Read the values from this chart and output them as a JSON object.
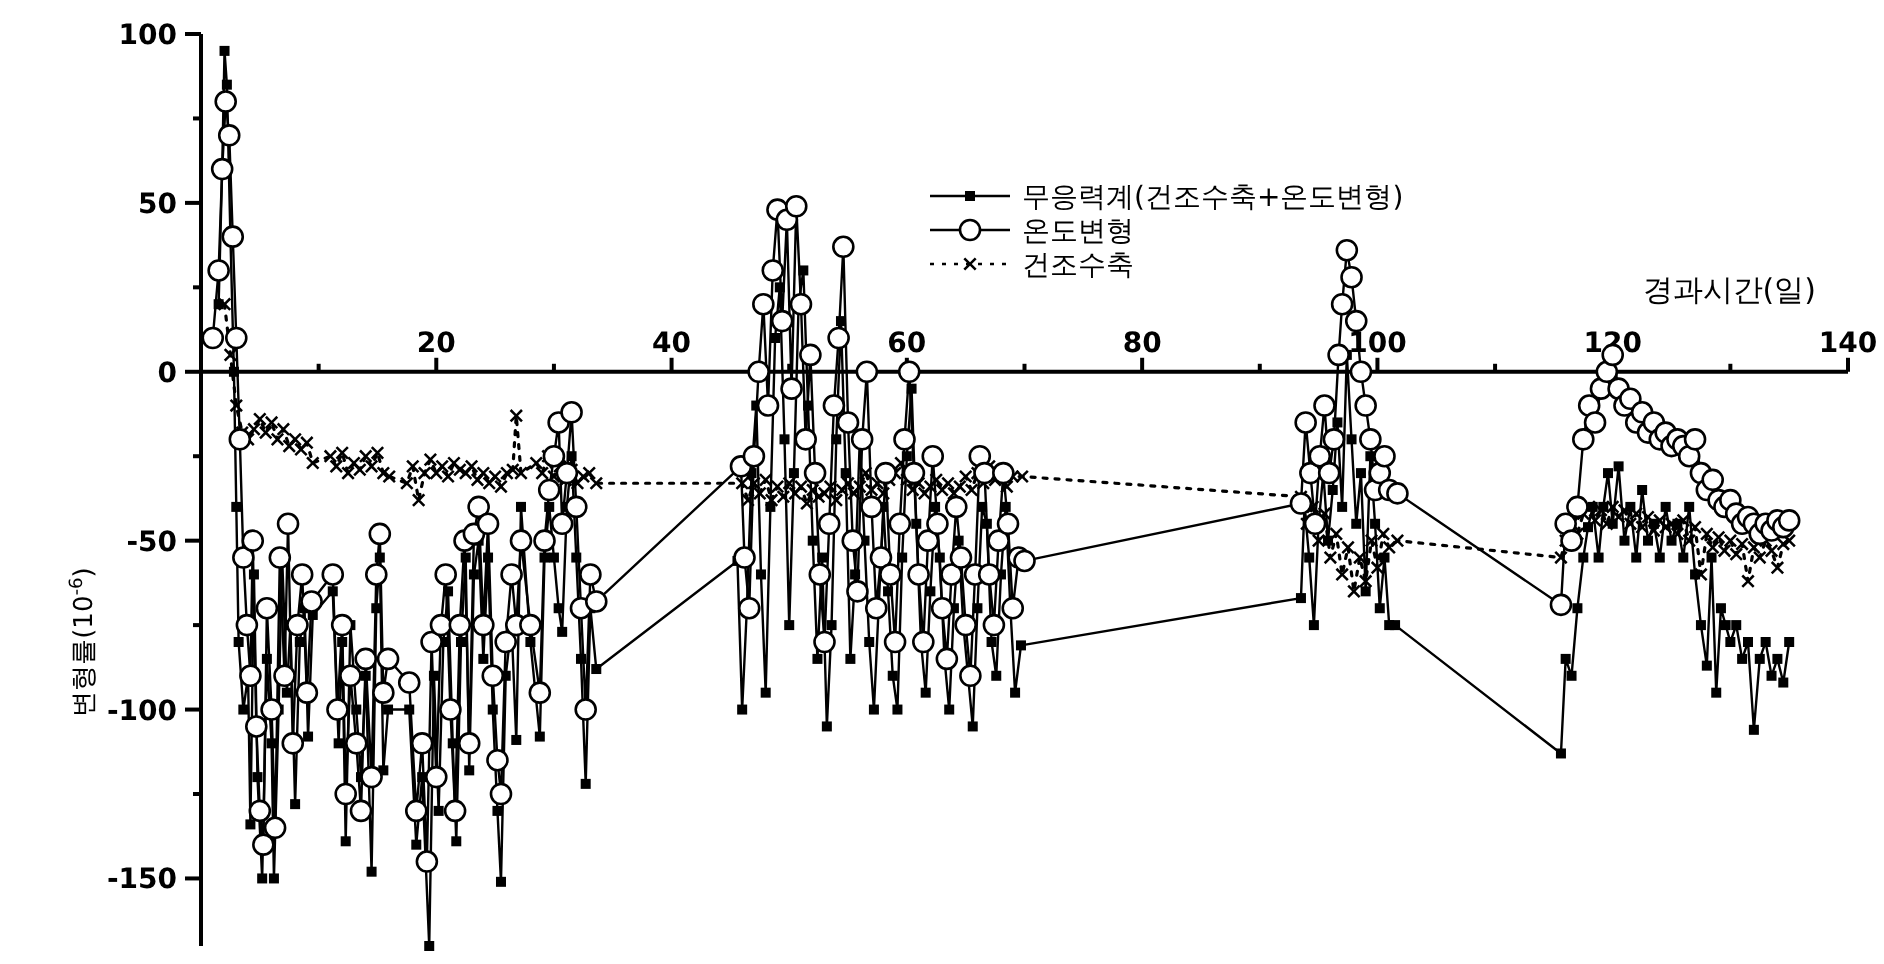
{
  "chart_data": {
    "type": "line",
    "xlabel": "경과시간(일)",
    "ylabel": "변형률(10$^{-6}$)",
    "xlim": [
      0,
      140
    ],
    "ylim": [
      -170,
      100
    ],
    "xticks": [
      {
        "value": 10,
        "label": null
      },
      20,
      {
        "value": 30,
        "label": null
      },
      40,
      {
        "value": 50,
        "label": null
      },
      60,
      {
        "value": 70,
        "label": null
      },
      80,
      {
        "value": 90,
        "label": null
      },
      100,
      {
        "value": 110,
        "label": null
      },
      120,
      {
        "value": 130,
        "label": null
      },
      140
    ],
    "yticks": [
      -150,
      {
        "value": -125,
        "label": null
      },
      -100,
      {
        "value": -75,
        "label": null
      },
      -50,
      {
        "value": -25,
        "label": null
      },
      0,
      {
        "value": 25,
        "label": null
      },
      50,
      {
        "value": 75,
        "label": null
      },
      100
    ],
    "legend": "top",
    "series": [
      {
        "name": "무응력계(건조수축+온도변형)",
        "color": "#000000",
        "marker": "square",
        "line_style": "solid",
        "x": [
          1.5,
          1.8,
          2.0,
          2.2,
          2.5,
          2.8,
          3.0,
          3.2,
          3.6,
          4.0,
          4.2,
          4.5,
          4.8,
          5.2,
          5.6,
          6.0,
          6.2,
          6.6,
          6.9,
          7.3,
          7.6,
          8.0,
          8.4,
          8.8,
          9.1,
          9.5,
          11.2,
          11.7,
          12.0,
          12.3,
          12.7,
          13.2,
          13.6,
          14.0,
          14.5,
          14.9,
          15.2,
          15.5,
          15.9,
          17.7,
          18.3,
          18.8,
          19.4,
          19.8,
          20.2,
          20.6,
          21.0,
          21.4,
          21.7,
          22.1,
          22.5,
          22.8,
          23.2,
          23.6,
          24.0,
          24.4,
          24.8,
          25.2,
          25.5,
          25.9,
          26.4,
          26.8,
          27.2,
          28.0,
          28.8,
          29.2,
          29.6,
          30.0,
          30.4,
          30.7,
          31.1,
          31.5,
          31.9,
          32.3,
          32.7,
          33.1,
          33.6,
          45.6,
          46.0,
          46.4,
          46.8,
          47.2,
          47.6,
          48.0,
          48.4,
          48.8,
          49.2,
          49.6,
          50.0,
          50.4,
          50.8,
          51.2,
          51.6,
          52.0,
          52.4,
          52.8,
          53.2,
          53.6,
          54.0,
          54.4,
          54.8,
          55.2,
          55.6,
          56.0,
          56.4,
          56.8,
          57.2,
          57.6,
          58.0,
          58.4,
          58.8,
          59.2,
          59.6,
          60.0,
          60.4,
          60.8,
          61.2,
          61.6,
          62.0,
          62.4,
          62.8,
          63.2,
          63.6,
          64.0,
          64.4,
          64.8,
          65.2,
          65.6,
          66.0,
          66.4,
          66.8,
          67.2,
          67.6,
          68.0,
          68.4,
          68.8,
          69.2,
          69.7,
          93.5,
          93.8,
          94.2,
          94.6,
          95.0,
          95.4,
          95.8,
          96.2,
          96.6,
          97.0,
          97.4,
          97.8,
          98.2,
          98.6,
          99.0,
          99.4,
          99.8,
          100.2,
          100.6,
          101.0,
          101.5,
          115.6,
          116.0,
          116.5,
          117.0,
          117.5,
          117.9,
          118.3,
          118.8,
          119.2,
          119.6,
          120.0,
          120.5,
          121.0,
          121.5,
          122.0,
          122.5,
          123.0,
          123.5,
          124.0,
          124.5,
          125.0,
          125.5,
          126.0,
          126.5,
          127.0,
          127.5,
          128.0,
          128.4,
          128.8,
          129.2,
          129.6,
          130.0,
          130.5,
          131.0,
          131.5,
          132.0,
          132.5,
          133.0,
          133.5,
          134.0,
          134.5,
          135.0
        ],
        "values": [
          20,
          60,
          95,
          85,
          40,
          0,
          -40,
          -80,
          -100,
          -90,
          -134,
          -60,
          -120,
          -150,
          -85,
          -110,
          -150,
          -100,
          -55,
          -95,
          -75,
          -128,
          -80,
          -70,
          -108,
          -72,
          -65,
          -110,
          -80,
          -139,
          -75,
          -100,
          -120,
          -90,
          -148,
          -70,
          -55,
          -118,
          -100,
          -100,
          -140,
          -120,
          -170,
          -90,
          -130,
          -80,
          -65,
          -110,
          -139,
          -80,
          -55,
          -118,
          -60,
          -50,
          -85,
          -55,
          -100,
          -130,
          -151,
          -90,
          -75,
          -109,
          -40,
          -80,
          -108,
          -55,
          -40,
          -55,
          -70,
          -77,
          -40,
          -25,
          -55,
          -85,
          -122,
          -70,
          -88,
          -56,
          -100,
          -70,
          -30,
          -10,
          -60,
          -95,
          -40,
          10,
          25,
          -20,
          -75,
          -30,
          20,
          30,
          -10,
          -50,
          -85,
          -55,
          -105,
          -75,
          -20,
          15,
          -30,
          -85,
          -60,
          -20,
          -50,
          -80,
          -100,
          -70,
          -40,
          -65,
          -90,
          -100,
          -55,
          -25,
          -5,
          -45,
          -80,
          -95,
          -65,
          -40,
          -55,
          -85,
          -100,
          -70,
          -50,
          -75,
          -90,
          -105,
          -70,
          -40,
          -45,
          -80,
          -90,
          -60,
          -40,
          -70,
          -95,
          -81,
          -67,
          -40,
          -55,
          -75,
          -45,
          -30,
          -50,
          -35,
          -15,
          -40,
          5,
          -20,
          -45,
          -30,
          -65,
          -25,
          -45,
          -70,
          -55,
          -75,
          -75,
          -113,
          -85,
          -90,
          -70,
          -55,
          -46,
          -40,
          -55,
          -40,
          -30,
          -45,
          -28,
          -50,
          -40,
          -55,
          -35,
          -50,
          -45,
          -55,
          -40,
          -50,
          -45,
          -55,
          -40,
          -60,
          -75,
          -87,
          -55,
          -95,
          -70,
          -75,
          -80,
          -75,
          -85,
          -80,
          -106,
          -85,
          -80,
          -90,
          -85,
          -92,
          -80
        ]
      },
      {
        "name": "온도변형",
        "color": "#000000",
        "marker": "circle",
        "line_style": "solid",
        "x": [
          1.0,
          1.5,
          1.8,
          2.1,
          2.4,
          2.7,
          3.0,
          3.3,
          3.6,
          3.9,
          4.2,
          4.4,
          4.7,
          5.0,
          5.3,
          5.6,
          6.0,
          6.3,
          6.7,
          7.1,
          7.4,
          7.8,
          8.2,
          8.6,
          9.0,
          9.4,
          11.2,
          11.6,
          12.0,
          12.3,
          12.7,
          13.2,
          13.6,
          14.0,
          14.5,
          14.9,
          15.2,
          15.5,
          15.9,
          17.7,
          18.3,
          18.8,
          19.2,
          19.6,
          20.0,
          20.4,
          20.8,
          21.2,
          21.6,
          22.0,
          22.4,
          22.8,
          23.2,
          23.6,
          24.0,
          24.4,
          24.8,
          25.2,
          25.5,
          25.9,
          26.4,
          26.8,
          27.2,
          28.0,
          28.8,
          29.2,
          29.6,
          30.0,
          30.4,
          30.7,
          31.1,
          31.5,
          31.9,
          32.3,
          32.7,
          33.1,
          33.6,
          45.9,
          46.2,
          46.6,
          47.0,
          47.4,
          47.8,
          48.2,
          48.6,
          49.0,
          49.4,
          49.8,
          50.2,
          50.6,
          51.0,
          51.4,
          51.8,
          52.2,
          52.6,
          53.0,
          53.4,
          53.8,
          54.2,
          54.6,
          55.0,
          55.4,
          55.8,
          56.2,
          56.6,
          57.0,
          57.4,
          57.8,
          58.2,
          58.6,
          59.0,
          59.4,
          59.8,
          60.2,
          60.6,
          61.0,
          61.4,
          61.8,
          62.2,
          62.6,
          63.0,
          63.4,
          63.8,
          64.2,
          64.6,
          65.0,
          65.4,
          65.8,
          66.2,
          66.6,
          67.0,
          67.4,
          67.8,
          68.2,
          68.6,
          69.0,
          69.5,
          70.0,
          93.5,
          93.9,
          94.3,
          94.7,
          95.1,
          95.5,
          95.9,
          96.3,
          96.7,
          97.0,
          97.4,
          97.8,
          98.2,
          98.6,
          99.0,
          99.4,
          99.8,
          100.2,
          100.6,
          101.0,
          101.7,
          115.6,
          116.0,
          116.5,
          117.0,
          117.5,
          118.0,
          118.5,
          119.0,
          119.5,
          120.0,
          120.5,
          121.0,
          121.5,
          122.0,
          122.5,
          123.0,
          123.5,
          124.0,
          124.5,
          125.0,
          125.5,
          126.0,
          126.5,
          127.0,
          127.5,
          128.0,
          128.5,
          129.0,
          129.5,
          130.0,
          130.5,
          131.0,
          131.5,
          132.0,
          132.5,
          133.0,
          133.5,
          134.0,
          134.5,
          135.0
        ],
        "values": [
          10,
          30,
          60,
          80,
          70,
          40,
          10,
          -20,
          -55,
          -75,
          -90,
          -50,
          -105,
          -130,
          -140,
          -70,
          -100,
          -135,
          -55,
          -90,
          -45,
          -110,
          -75,
          -60,
          -95,
          -68,
          -60,
          -100,
          -75,
          -125,
          -90,
          -110,
          -130,
          -85,
          -120,
          -60,
          -48,
          -95,
          -85,
          -92,
          -130,
          -110,
          -145,
          -80,
          -120,
          -75,
          -60,
          -100,
          -130,
          -75,
          -50,
          -110,
          -48,
          -40,
          -75,
          -45,
          -90,
          -115,
          -125,
          -80,
          -60,
          -75,
          -50,
          -75,
          -95,
          -50,
          -35,
          -25,
          -15,
          -45,
          -30,
          -12,
          -40,
          -70,
          -100,
          -60,
          -68,
          -28,
          -55,
          -70,
          -25,
          0,
          20,
          -10,
          30,
          48,
          15,
          45,
          -5,
          49,
          20,
          -20,
          5,
          -30,
          -60,
          -80,
          -45,
          -10,
          10,
          37,
          -15,
          -50,
          -65,
          -20,
          0,
          -40,
          -70,
          -55,
          -30,
          -60,
          -80,
          -45,
          -20,
          0,
          -30,
          -60,
          -80,
          -50,
          -25,
          -45,
          -70,
          -85,
          -60,
          -40,
          -55,
          -75,
          -90,
          -60,
          -25,
          -30,
          -60,
          -75,
          -50,
          -30,
          -45,
          -70,
          -55,
          -56,
          -39,
          -15,
          -30,
          -45,
          -25,
          -10,
          -30,
          -20,
          5,
          20,
          36,
          28,
          15,
          0,
          -10,
          -20,
          -35,
          -30,
          -25,
          -35,
          -36,
          -69,
          -45,
          -50,
          -40,
          -20,
          -10,
          -15,
          -5,
          0,
          5,
          -5,
          -10,
          -8,
          -15,
          -12,
          -18,
          -15,
          -20,
          -18,
          -22,
          -20,
          -22,
          -25,
          -20,
          -30,
          -35,
          -32,
          -38,
          -40,
          -38,
          -42,
          -45,
          -43,
          -45,
          -48,
          -45,
          -47,
          -44,
          -46,
          -44
        ]
      },
      {
        "name": "건조수축",
        "color": "#000000",
        "marker": "cross",
        "line_style": "dotted",
        "x": [
          2.0,
          2.5,
          3.0,
          3.5,
          4.0,
          4.5,
          5.0,
          5.5,
          6.0,
          6.5,
          7.0,
          7.5,
          8.0,
          8.5,
          9.0,
          9.5,
          11.0,
          11.5,
          12.0,
          12.5,
          13.0,
          13.5,
          14.0,
          14.5,
          15.0,
          15.5,
          16.0,
          17.5,
          18.0,
          18.5,
          19.0,
          19.5,
          20.0,
          20.5,
          21.0,
          21.5,
          22.0,
          22.5,
          23.0,
          23.5,
          24.0,
          24.5,
          25.0,
          25.5,
          26.0,
          26.5,
          26.8,
          27.2,
          28.5,
          29.0,
          29.5,
          30.0,
          30.5,
          31.0,
          31.5,
          32.0,
          32.5,
          33.0,
          33.6,
          46.0,
          46.5,
          47.0,
          47.5,
          48.0,
          48.5,
          49.0,
          49.5,
          50.0,
          50.5,
          51.0,
          51.5,
          52.0,
          52.5,
          53.0,
          53.5,
          54.0,
          54.5,
          55.0,
          55.5,
          56.0,
          56.5,
          57.0,
          57.5,
          58.0,
          58.5,
          59.0,
          59.5,
          60.0,
          60.5,
          61.0,
          61.5,
          62.0,
          62.5,
          63.0,
          63.5,
          64.0,
          64.5,
          65.0,
          65.5,
          66.0,
          66.5,
          67.0,
          67.5,
          68.0,
          68.5,
          69.0,
          69.8,
          93.5,
          94.0,
          94.5,
          95.0,
          95.5,
          96.0,
          96.5,
          97.0,
          97.5,
          98.0,
          98.5,
          99.0,
          99.5,
          100.0,
          100.5,
          101.0,
          101.7,
          115.6,
          116.0,
          116.5,
          117.0,
          117.5,
          118.0,
          118.5,
          119.0,
          119.5,
          120.0,
          120.5,
          121.0,
          121.5,
          122.0,
          122.5,
          123.0,
          123.5,
          124.0,
          124.5,
          125.0,
          125.5,
          126.0,
          126.5,
          127.0,
          127.5,
          128.0,
          128.5,
          129.0,
          129.5,
          130.0,
          130.5,
          131.0,
          131.5,
          132.0,
          132.5,
          133.0,
          133.5,
          134.0,
          134.5,
          135.0
        ],
        "values": [
          20,
          5,
          -10,
          -18,
          -20,
          -17,
          -14,
          -18,
          -15,
          -20,
          -17,
          -22,
          -20,
          -23,
          -21,
          -27,
          -25,
          -28,
          -24,
          -30,
          -27,
          -29,
          -25,
          -28,
          -24,
          -30,
          -31,
          -33,
          -28,
          -38,
          -30,
          -26,
          -30,
          -28,
          -31,
          -27,
          -29,
          -30,
          -28,
          -32,
          -30,
          -33,
          -31,
          -34,
          -30,
          -29,
          -13,
          -30,
          -27,
          -30,
          -25,
          -31,
          -28,
          -32,
          -29,
          -33,
          -31,
          -30,
          -33,
          -33,
          -38,
          -33,
          -36,
          -32,
          -38,
          -34,
          -37,
          -33,
          -36,
          -34,
          -39,
          -35,
          -37,
          -36,
          -34,
          -38,
          -35,
          -33,
          -36,
          -34,
          -30,
          -35,
          -33,
          -36,
          -32,
          -30,
          -27,
          -32,
          -35,
          -33,
          -36,
          -34,
          -32,
          -35,
          -33,
          -36,
          -34,
          -31,
          -35,
          -30,
          -33,
          -28,
          -32,
          -30,
          -34,
          -31,
          -31,
          -37,
          -45,
          -40,
          -50,
          -42,
          -55,
          -48,
          -60,
          -52,
          -65,
          -55,
          -62,
          -50,
          -58,
          -48,
          -52,
          -50,
          -55,
          -50,
          -45,
          -48,
          -42,
          -40,
          -44,
          -41,
          -45,
          -40,
          -43,
          -41,
          -45,
          -42,
          -46,
          -43,
          -47,
          -44,
          -46,
          -45,
          -48,
          -44,
          -50,
          -46,
          -60,
          -48,
          -52,
          -49,
          -53,
          -50,
          -54,
          -51,
          -62,
          -52,
          -55,
          -50,
          -53,
          -58,
          -51,
          -50
        ]
      }
    ]
  }
}
